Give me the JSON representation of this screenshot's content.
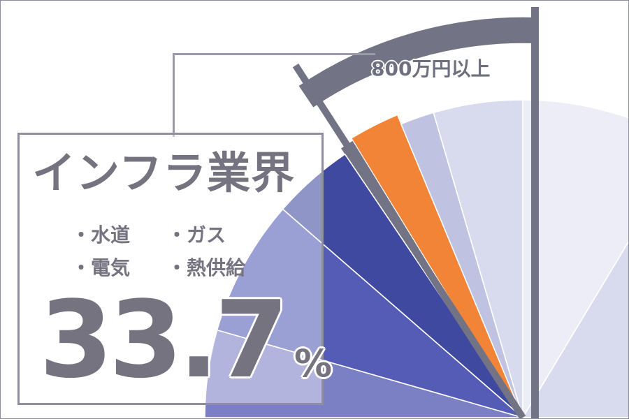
{
  "colors": {
    "text": "#74737f",
    "frame": "#8c8c9a",
    "bracket": "#727384",
    "highlight": "#f28437"
  },
  "infobox": {
    "title": "インフラ業界",
    "bullets": [
      [
        "・水道",
        "・ガス"
      ],
      [
        "・電気",
        "・熱供給"
      ]
    ],
    "value": "33.7",
    "unit": "%"
  },
  "bracket_label": "800万円以上",
  "chart_data": {
    "type": "pie",
    "title": "インフラ業界",
    "note": "Half-pie (semicircle) fan; highlighted orange slice and slices to its right grouped by bracket labeled 800万円以上; highlighted group share 33.7%",
    "center": [
      748,
      598
    ],
    "radius": 455,
    "slices": [
      {
        "start_deg": 0,
        "end_deg": 16,
        "color": "#7b7fc4"
      },
      {
        "start_deg": 16,
        "end_deg": 41,
        "color": "#545cb6"
      },
      {
        "start_deg": 41,
        "end_deg": 56,
        "color": "#4049a0"
      },
      {
        "start_deg": 58.5,
        "end_deg": 67.5,
        "color": "#f28437",
        "highlight": true
      },
      {
        "start_deg": 67.5,
        "end_deg": 73.7,
        "color": "#c0c2e2"
      },
      {
        "start_deg": 73.7,
        "end_deg": 90,
        "color": "#d8daee"
      },
      {
        "start_deg": 90,
        "end_deg": 121,
        "color": "#ecedf7"
      },
      {
        "start_deg": 121,
        "end_deg": 180,
        "color": "#d8daee"
      }
    ],
    "annotations": [
      {
        "text": "800万円以上",
        "type": "bracket",
        "from_deg": 56,
        "to_deg": 90
      },
      {
        "text": "33.7%",
        "type": "value"
      }
    ]
  }
}
